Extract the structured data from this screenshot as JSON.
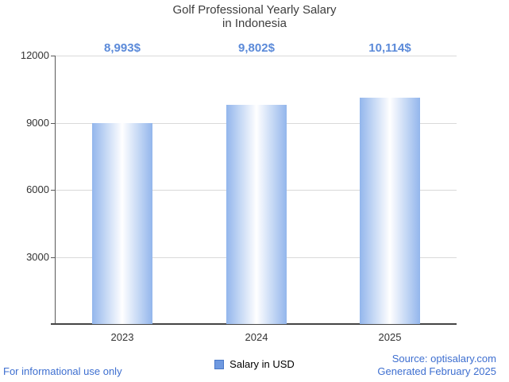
{
  "title": {
    "line1": "Golf Professional Yearly Salary",
    "line2": "in Indonesia"
  },
  "chart_data": {
    "type": "bar",
    "title": "Golf Professional Yearly Salary in Indonesia",
    "categories": [
      "2023",
      "2024",
      "2025"
    ],
    "values": [
      8993,
      9802,
      10114
    ],
    "value_labels": [
      "8,993$",
      "9,802$",
      "10,114$"
    ],
    "xlabel": "",
    "ylabel": "",
    "ylim": [
      0,
      12000
    ],
    "yticks": [
      3000,
      6000,
      9000,
      12000
    ],
    "grid": true,
    "legend": "Salary in USD",
    "legend_position": "bottom"
  },
  "footer": {
    "left": "For informational use only",
    "source": "Source: optisalary.com",
    "generated": "Generated February 2025"
  },
  "colors": {
    "value_label_blue": "#5b8ad9",
    "footer_blue": "#3e6fd0",
    "bar_edge": "#93b6ec",
    "bar_center": "#ffffff",
    "legend_square": "#6f99e0",
    "gridline": "#d9d9d9",
    "title_text": "#3d3d3d"
  }
}
